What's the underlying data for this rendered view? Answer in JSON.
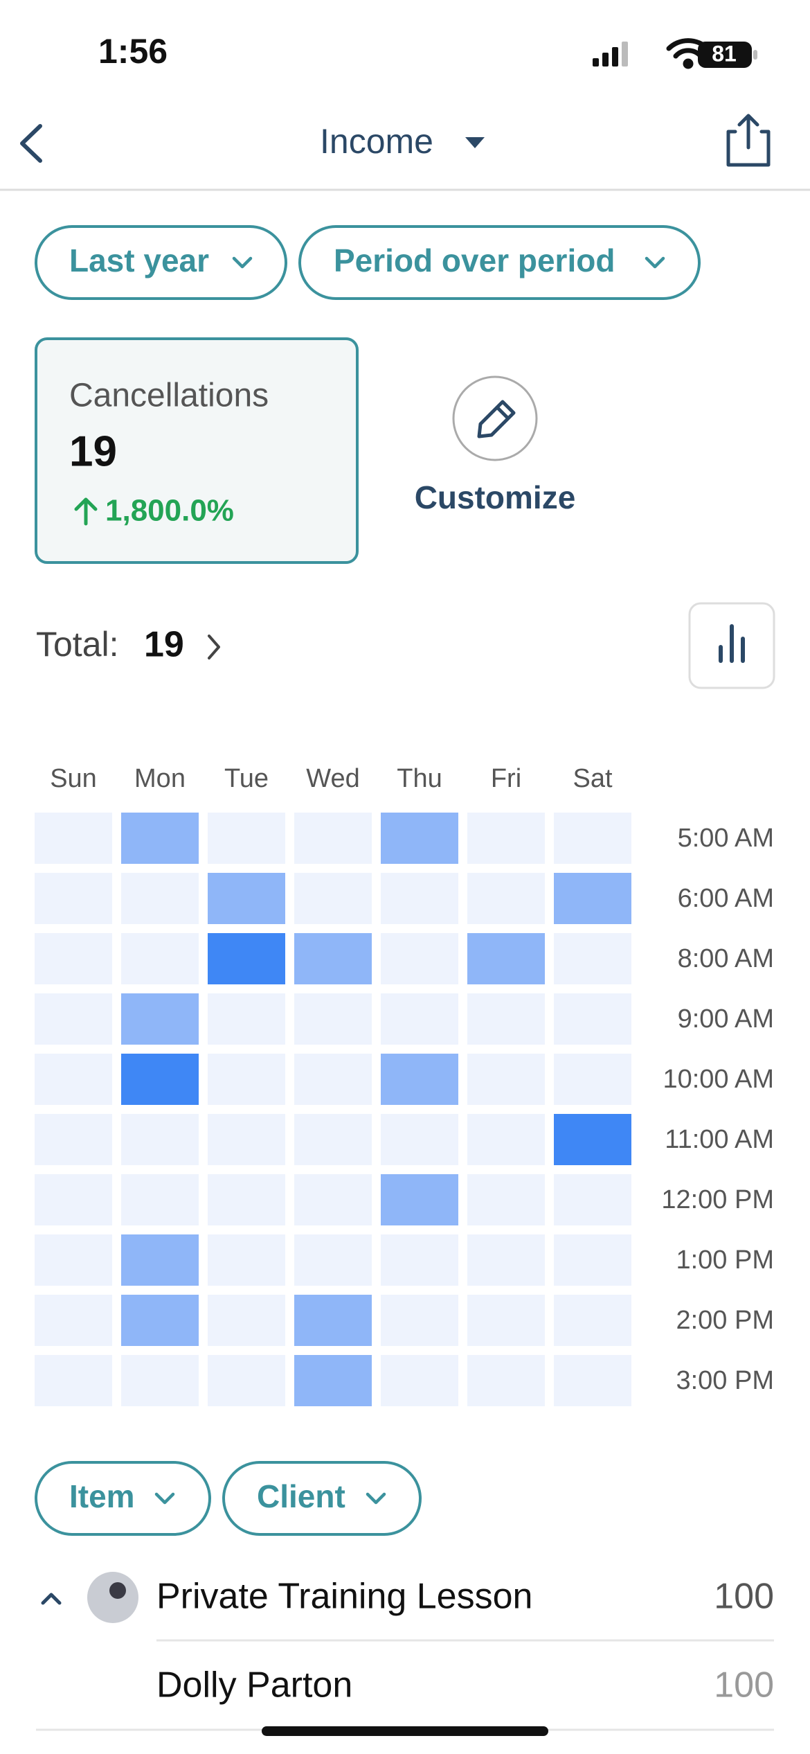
{
  "status_bar": {
    "time": "1:56",
    "battery": "81"
  },
  "header": {
    "title": "Income"
  },
  "filters": [
    "Last year",
    "Period over period"
  ],
  "kpi": {
    "label": "Cancellations",
    "value": 19,
    "change": "1,800.0%"
  },
  "customize": {
    "label": "Customize"
  },
  "total": {
    "label": "Total:",
    "value": 19
  },
  "heatmap": {
    "type": "heatmap",
    "days": [
      "Sun",
      "Mon",
      "Tue",
      "Wed",
      "Thu",
      "Fri",
      "Sat"
    ],
    "times": [
      "5:00 AM",
      "6:00 AM",
      "8:00 AM",
      "9:00 AM",
      "10:00 AM",
      "11:00 AM",
      "12:00 PM",
      "1:00 PM",
      "2:00 PM",
      "3:00 PM"
    ],
    "values": [
      [
        0,
        1,
        0,
        0,
        1,
        0,
        0
      ],
      [
        0,
        0,
        1,
        0,
        0,
        0,
        1
      ],
      [
        0,
        0,
        2,
        1,
        0,
        1,
        0
      ],
      [
        0,
        1,
        0,
        0,
        0,
        0,
        0
      ],
      [
        0,
        2,
        0,
        0,
        1,
        0,
        0
      ],
      [
        0,
        0,
        0,
        0,
        0,
        0,
        2
      ],
      [
        0,
        0,
        0,
        0,
        1,
        0,
        0
      ],
      [
        0,
        1,
        0,
        0,
        0,
        0,
        0
      ],
      [
        0,
        1,
        0,
        1,
        0,
        0,
        0
      ],
      [
        0,
        0,
        0,
        1,
        0,
        0,
        0
      ]
    ],
    "colors": [
      "#eef3fd",
      "#8fb6f8",
      "#3f87f5"
    ]
  },
  "group_filters": [
    "Item",
    "Client"
  ],
  "list": [
    {
      "name": "Private Training Lesson",
      "value": 100
    },
    {
      "name": "Dolly Parton",
      "value": 100
    }
  ]
}
